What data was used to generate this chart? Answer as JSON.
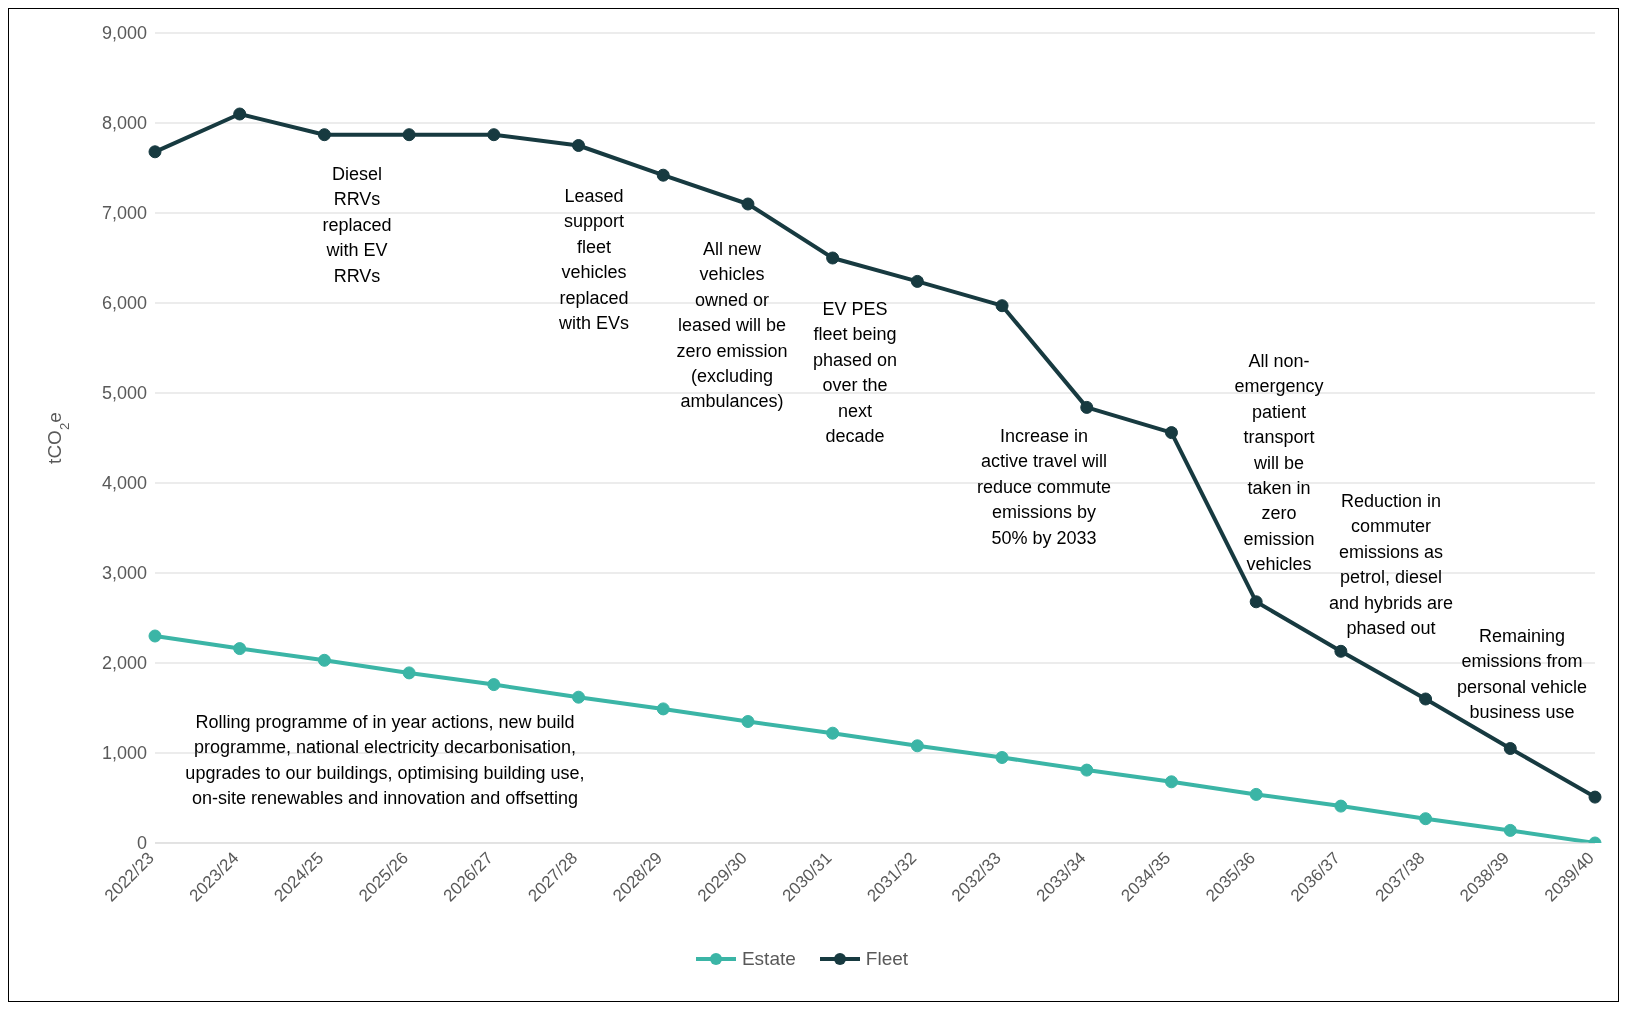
{
  "chart_data": {
    "type": "line",
    "ylabel": "tCO$_{2}$e",
    "categories": [
      "2022/23",
      "2023/24",
      "2024/25",
      "2025/26",
      "2026/27",
      "2027/28",
      "2028/29",
      "2029/30",
      "2030/31",
      "2031/32",
      "2032/33",
      "2033/34",
      "2034/35",
      "2035/36",
      "2036/37",
      "2037/38",
      "2038/39",
      "2039/40"
    ],
    "series": [
      {
        "name": "Estate",
        "color": "#3bb5a6",
        "values": [
          2300,
          2160,
          2030,
          1890,
          1760,
          1620,
          1490,
          1350,
          1220,
          1080,
          950,
          810,
          680,
          540,
          410,
          270,
          140,
          0
        ]
      },
      {
        "name": "Fleet",
        "color": "#173a40",
        "values": [
          7680,
          8100,
          7870,
          7870,
          7870,
          7750,
          7420,
          7100,
          6500,
          6240,
          5970,
          4840,
          4560,
          2680,
          2130,
          1600,
          1050,
          510
        ]
      }
    ],
    "ylim": [
      0,
      9000
    ],
    "yticks": [
      {
        "value": 0,
        "label": "0"
      },
      {
        "value": 1000,
        "label": "1,000"
      },
      {
        "value": 2000,
        "label": "2,000"
      },
      {
        "value": 3000,
        "label": "3,000"
      },
      {
        "value": 4000,
        "label": "4,000"
      },
      {
        "value": 5000,
        "label": "5,000"
      },
      {
        "value": 6000,
        "label": "6,000"
      },
      {
        "value": 7000,
        "label": "7,000"
      },
      {
        "value": 8000,
        "label": "8,000"
      },
      {
        "value": 9000,
        "label": "9,000"
      }
    ],
    "grid": "y",
    "legend": "bottom",
    "marker": "circle",
    "line_style": "solid",
    "annotations": [
      "Diesel\nRRVs\nreplaced\nwith EV\nRRVs",
      "Leased\nsupport\nfleet\nvehicles\nreplaced\nwith EVs",
      "All new\nvehicles\nowned or\nleased will be\nzero emission\n(excluding\nambulances)",
      "EV PES\nfleet being\nphased on\nover the\nnext\ndecade",
      "Increase in\nactive travel will\nreduce commute\nemissions by\n50% by 2033",
      "All non-\nemergency\npatient\ntransport\nwill be\ntaken in\nzero\nemission\nvehicles",
      "Reduction in\ncommuter\nemissions as\npetrol, diesel\nand hybrids are\nphased out",
      "Remaining\nemissions from\npersonal vehicle\nbusiness use",
      "Rolling programme of in year actions, new build\nprogramme, national electricity decarbonisation,\nupgrades to our buildings, optimising building use,\non-site renewables and innovation and offsetting"
    ]
  }
}
